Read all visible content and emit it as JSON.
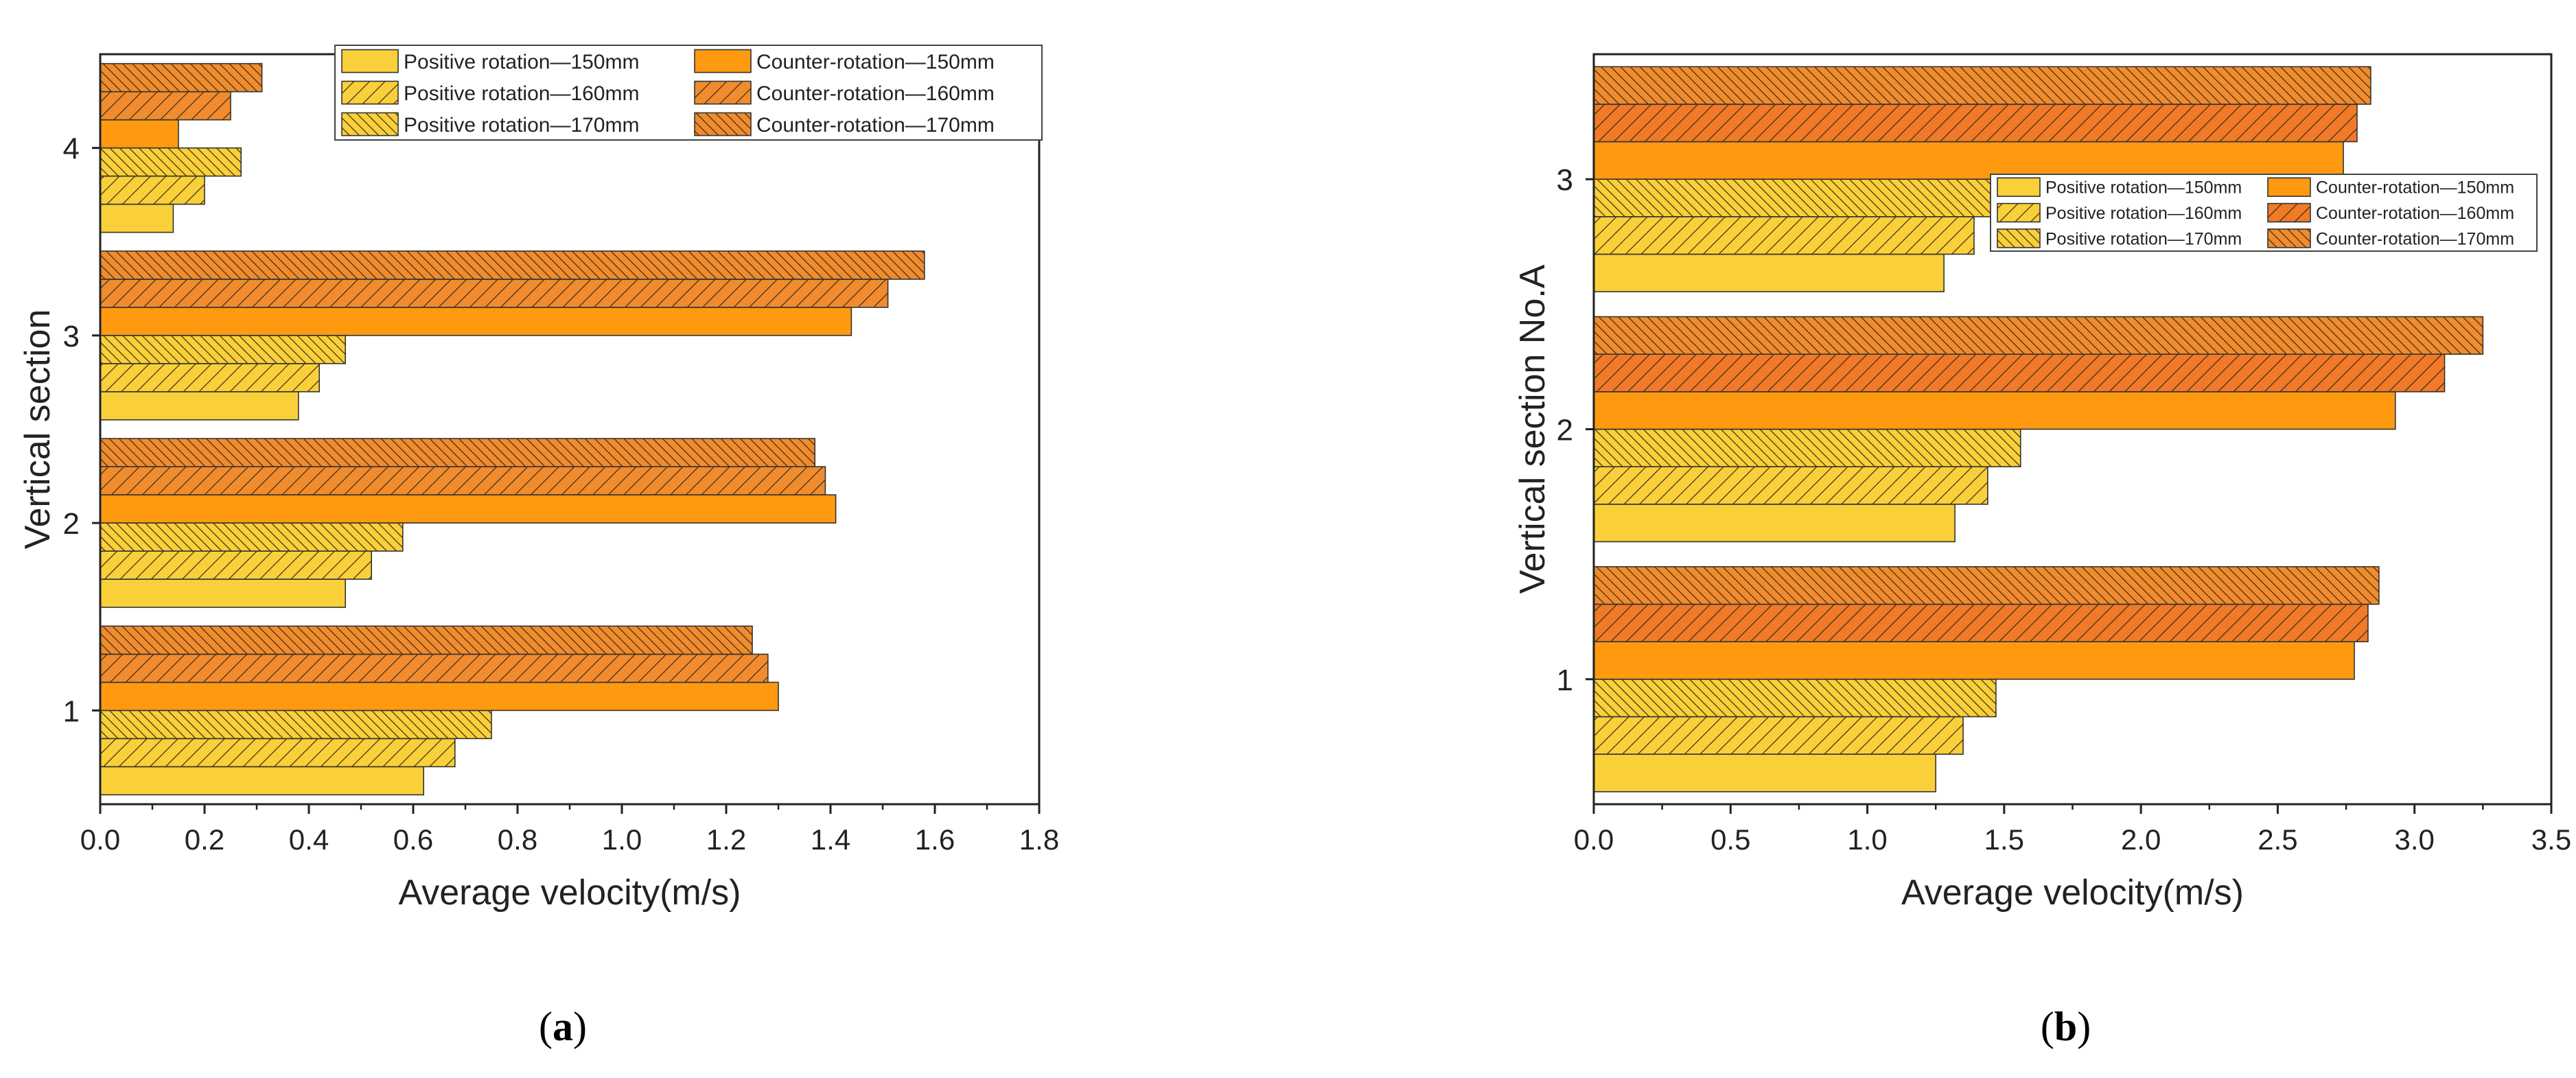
{
  "chart_data": [
    {
      "type": "bar",
      "orientation": "horizontal",
      "panel_label": "a",
      "xlabel": "Average velocity(m/s)",
      "ylabel": "Vertical section",
      "xlim": [
        0,
        1.8
      ],
      "xticks": [
        "0.0",
        "0.2",
        "0.4",
        "0.6",
        "0.8",
        "1.0",
        "1.2",
        "1.4",
        "1.6",
        "1.8"
      ],
      "categories": [
        "1",
        "2",
        "3",
        "4"
      ],
      "legend_position": "top-right",
      "series": [
        {
          "name": "Positive rotation—150mm",
          "color": "#F9D03A",
          "pattern": "solid",
          "values": [
            0.62,
            0.47,
            0.38,
            0.14
          ]
        },
        {
          "name": "Positive rotation—160mm",
          "color": "#F9D03A",
          "pattern": "hatch",
          "values": [
            0.68,
            0.52,
            0.42,
            0.2
          ]
        },
        {
          "name": "Positive rotation—170mm",
          "color": "#F9D03A",
          "pattern": "hatch-dense",
          "values": [
            0.75,
            0.58,
            0.47,
            0.27
          ]
        },
        {
          "name": "Counter-rotation—150mm",
          "color": "#FF9A10",
          "pattern": "solid",
          "values": [
            1.3,
            1.41,
            1.44,
            0.15
          ]
        },
        {
          "name": "Counter-rotation—160mm",
          "color": "#F08C2E",
          "pattern": "hatch",
          "values": [
            1.28,
            1.39,
            1.51,
            0.25
          ]
        },
        {
          "name": "Counter-rotation—170mm",
          "color": "#F08C2E",
          "pattern": "hatch-dense",
          "values": [
            1.25,
            1.37,
            1.58,
            0.31
          ]
        }
      ]
    },
    {
      "type": "bar",
      "orientation": "horizontal",
      "panel_label": "b",
      "xlabel": "Average velocity(m/s)",
      "ylabel": "Vertical section No.A",
      "xlim": [
        0,
        3.5
      ],
      "xticks": [
        "0.0",
        "0.5",
        "1.0",
        "1.5",
        "2.0",
        "2.5",
        "3.0",
        "3.5"
      ],
      "categories": [
        "1",
        "2",
        "3"
      ],
      "legend_position": "center-right",
      "series": [
        {
          "name": "Positive rotation—150mm",
          "color": "#F9D03A",
          "pattern": "solid",
          "values": [
            1.25,
            1.32,
            1.28
          ]
        },
        {
          "name": "Positive rotation—160mm",
          "color": "#F9D03A",
          "pattern": "hatch",
          "values": [
            1.35,
            1.44,
            1.39
          ]
        },
        {
          "name": "Positive rotation—170mm",
          "color": "#F9D03A",
          "pattern": "hatch-dense",
          "values": [
            1.47,
            1.56,
            1.45
          ]
        },
        {
          "name": "Counter-rotation—150mm",
          "color": "#FF9A10",
          "pattern": "solid",
          "values": [
            2.78,
            2.93,
            2.74
          ]
        },
        {
          "name": "Counter-rotation—160mm",
          "color": "#F07A28",
          "pattern": "hatch",
          "values": [
            2.83,
            3.11,
            2.79
          ]
        },
        {
          "name": "Counter-rotation—170mm",
          "color": "#F08C2E",
          "pattern": "hatch-dense",
          "values": [
            2.87,
            3.25,
            2.84
          ]
        }
      ]
    }
  ]
}
